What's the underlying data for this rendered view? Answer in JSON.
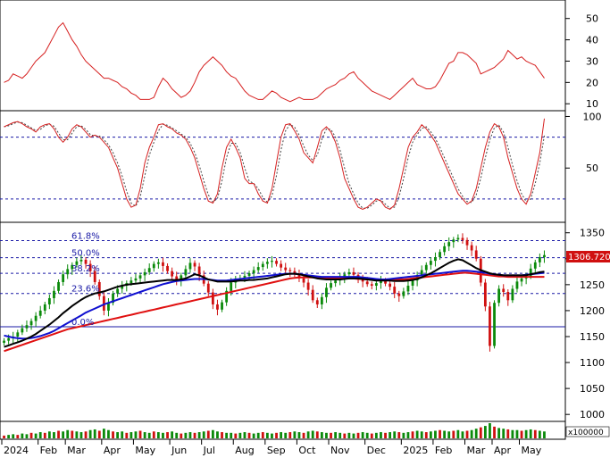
{
  "chart_data": [
    {
      "type": "line",
      "panel": "adx-indicator",
      "y_ticks": [
        10,
        20,
        30,
        40,
        50
      ],
      "ylim": [
        8,
        57
      ],
      "line_color": "#d62020",
      "x_count": 120,
      "series": [
        {
          "values": [
            20,
            21,
            24,
            23,
            22,
            24,
            27,
            30,
            32,
            34,
            38,
            42,
            46,
            48,
            44,
            40,
            37,
            33,
            30,
            28,
            26,
            24,
            22,
            22,
            21,
            20,
            18,
            17,
            15,
            14,
            12,
            12,
            12,
            13,
            18,
            22,
            20,
            17,
            15,
            13,
            14,
            16,
            20,
            25,
            28,
            30,
            32,
            30,
            28,
            25,
            23,
            22,
            19,
            16,
            14,
            13,
            12,
            12,
            14,
            16,
            15,
            13,
            12,
            11,
            12,
            13,
            12,
            12,
            12,
            13,
            15,
            17,
            18,
            19,
            21,
            22,
            24,
            25,
            22,
            20,
            18,
            16,
            15,
            14,
            13,
            12,
            14,
            16,
            18,
            20,
            22,
            19,
            18,
            17,
            17,
            18,
            21,
            25,
            29,
            30,
            34,
            34,
            33,
            31,
            29,
            24,
            25,
            26,
            27,
            29,
            31,
            35,
            33,
            31,
            32,
            30,
            29,
            28,
            25,
            22
          ]
        }
      ]
    },
    {
      "type": "line",
      "panel": "stochastic-oscillator",
      "y_ticks": [
        50,
        100
      ],
      "ylim": [
        0,
        103
      ],
      "reference_lines": [
        80,
        20
      ],
      "line_colors": [
        "#d62020",
        "#444444"
      ],
      "x_count": 120,
      "series": [
        {
          "values": [
            90,
            92,
            94,
            95,
            93,
            90,
            88,
            85,
            90,
            92,
            93,
            88,
            80,
            75,
            80,
            88,
            92,
            90,
            85,
            80,
            82,
            80,
            75,
            70,
            60,
            50,
            35,
            20,
            12,
            14,
            30,
            55,
            70,
            80,
            92,
            93,
            90,
            88,
            84,
            82,
            78,
            70,
            60,
            45,
            30,
            18,
            16,
            25,
            50,
            70,
            78,
            70,
            60,
            40,
            35,
            35,
            25,
            18,
            16,
            30,
            55,
            80,
            92,
            93,
            86,
            78,
            65,
            60,
            55,
            70,
            86,
            90,
            85,
            75,
            60,
            40,
            30,
            20,
            12,
            10,
            12,
            16,
            20,
            18,
            12,
            10,
            14,
            30,
            50,
            70,
            80,
            85,
            92,
            88,
            82,
            75,
            65,
            55,
            45,
            35,
            25,
            20,
            15,
            18,
            30,
            50,
            70,
            85,
            93,
            90,
            80,
            60,
            45,
            30,
            20,
            15,
            25,
            45,
            65,
            98
          ]
        }
      ]
    },
    {
      "type": "candlestick",
      "panel": "price",
      "y_ticks": [
        1000,
        1050,
        1100,
        1150,
        1200,
        1250,
        1300,
        1350
      ],
      "ylim": [
        990,
        1365
      ],
      "x_count": 120,
      "x_tick_labels": [
        "2024",
        "Feb",
        "Mar",
        "Apr",
        "May",
        "Jun",
        "Jul",
        "Aug",
        "Sep",
        "Oct",
        "Nov",
        "Dec",
        "2025",
        "Feb",
        "Mar",
        "Apr",
        "May"
      ],
      "x_tick_positions": [
        0,
        8,
        14,
        22,
        29,
        37,
        44,
        51,
        58,
        65,
        72,
        80,
        88,
        95,
        102,
        108,
        114
      ],
      "last_price_label": "1306.720",
      "fib_levels": [
        {
          "label": "61.8%",
          "value": 1335
        },
        {
          "label": "50.0%",
          "value": 1302
        },
        {
          "label": "38.2%",
          "value": 1272
        },
        {
          "label": "23.6%",
          "value": 1233
        },
        {
          "label": "0.0%",
          "value": 1169
        }
      ],
      "horizontal_line": 1169,
      "closes": [
        1142,
        1147,
        1150,
        1158,
        1166,
        1172,
        1180,
        1190,
        1200,
        1212,
        1224,
        1238,
        1255,
        1270,
        1280,
        1288,
        1295,
        1298,
        1290,
        1276,
        1255,
        1228,
        1200,
        1215,
        1233,
        1242,
        1248,
        1253,
        1258,
        1262,
        1268,
        1274,
        1282,
        1290,
        1293,
        1286,
        1276,
        1266,
        1258,
        1268,
        1280,
        1292,
        1285,
        1268,
        1252,
        1235,
        1212,
        1202,
        1216,
        1238,
        1254,
        1262,
        1262,
        1267,
        1272,
        1278,
        1284,
        1290,
        1294,
        1296,
        1290,
        1283,
        1278,
        1276,
        1270,
        1262,
        1254,
        1240,
        1220,
        1212,
        1226,
        1244,
        1253,
        1258,
        1264,
        1270,
        1274,
        1269,
        1262,
        1256,
        1251,
        1248,
        1253,
        1258,
        1252,
        1246,
        1233,
        1228,
        1237,
        1248,
        1258,
        1268,
        1278,
        1288,
        1296,
        1303,
        1313,
        1324,
        1332,
        1337,
        1340,
        1336,
        1326,
        1316,
        1300,
        1254,
        1208,
        1132,
        1215,
        1242,
        1236,
        1220,
        1242,
        1256,
        1262,
        1266,
        1281,
        1293,
        1303,
        1307
      ],
      "ma_black": [
        1130,
        1133,
        1136,
        1139,
        1142,
        1146,
        1150,
        1155,
        1161,
        1167,
        1173,
        1180,
        1187,
        1195,
        1202,
        1209,
        1215,
        1221,
        1226,
        1230,
        1233,
        1235,
        1237,
        1240,
        1243,
        1246,
        1248,
        1250,
        1251,
        1252,
        1253,
        1254,
        1255,
        1256,
        1257,
        1258,
        1259,
        1259,
        1259,
        1260,
        1262,
        1266,
        1270,
        1268,
        1264,
        1260,
        1258,
        1256,
        1256,
        1256,
        1256,
        1257,
        1258,
        1258,
        1259,
        1259,
        1260,
        1261,
        1262,
        1264,
        1266,
        1268,
        1270,
        1271,
        1271,
        1270,
        1268,
        1266,
        1264,
        1262,
        1261,
        1260,
        1260,
        1260,
        1260,
        1261,
        1262,
        1262,
        1262,
        1261,
        1260,
        1259,
        1258,
        1258,
        1258,
        1258,
        1257,
        1257,
        1257,
        1258,
        1259,
        1261,
        1264,
        1268,
        1272,
        1277,
        1282,
        1287,
        1292,
        1296,
        1299,
        1297,
        1292,
        1287,
        1282,
        1278,
        1275,
        1272,
        1270,
        1269,
        1268,
        1268,
        1268,
        1268,
        1268,
        1268,
        1270,
        1272,
        1274,
        1275
      ],
      "ma_blue": [
        1152,
        1150,
        1148,
        1147,
        1146,
        1146,
        1147,
        1149,
        1151,
        1154,
        1157,
        1161,
        1166,
        1171,
        1176,
        1181,
        1186,
        1191,
        1196,
        1200,
        1204,
        1208,
        1212,
        1215,
        1218,
        1221,
        1224,
        1227,
        1230,
        1233,
        1236,
        1239,
        1242,
        1245,
        1248,
        1251,
        1253,
        1255,
        1257,
        1258,
        1259,
        1260,
        1261,
        1261,
        1261,
        1260,
        1259,
        1258,
        1258,
        1258,
        1259,
        1260,
        1261,
        1262,
        1263,
        1264,
        1265,
        1266,
        1267,
        1268,
        1269,
        1270,
        1271,
        1271,
        1271,
        1270,
        1269,
        1268,
        1267,
        1266,
        1265,
        1265,
        1265,
        1265,
        1265,
        1265,
        1265,
        1265,
        1265,
        1264,
        1263,
        1262,
        1261,
        1260,
        1260,
        1261,
        1262,
        1263,
        1264,
        1265,
        1266,
        1267,
        1268,
        1269,
        1270,
        1271,
        1272,
        1273,
        1274,
        1275,
        1276,
        1277,
        1277,
        1276,
        1275,
        1274,
        1273,
        1271,
        1270,
        1269,
        1268,
        1268,
        1268,
        1268,
        1268,
        1269,
        1270,
        1271,
        1272,
        1273
      ],
      "ma_red": [
        1122,
        1125,
        1128,
        1131,
        1134,
        1137,
        1140,
        1143,
        1146,
        1149,
        1152,
        1155,
        1158,
        1161,
        1164,
        1166,
        1168,
        1170,
        1172,
        1174,
        1176,
        1178,
        1180,
        1182,
        1184,
        1186,
        1188,
        1190,
        1192,
        1194,
        1196,
        1198,
        1200,
        1202,
        1204,
        1206,
        1208,
        1210,
        1212,
        1214,
        1216,
        1218,
        1220,
        1222,
        1224,
        1226,
        1228,
        1230,
        1232,
        1234,
        1236,
        1238,
        1240,
        1242,
        1244,
        1246,
        1248,
        1250,
        1252,
        1254,
        1256,
        1258,
        1260,
        1262,
        1263,
        1264,
        1264,
        1264,
        1264,
        1263,
        1263,
        1263,
        1263,
        1263,
        1263,
        1263,
        1262,
        1262,
        1261,
        1261,
        1260,
        1260,
        1260,
        1260,
        1260,
        1260,
        1260,
        1260,
        1260,
        1261,
        1262,
        1263,
        1264,
        1265,
        1266,
        1267,
        1268,
        1269,
        1270,
        1271,
        1272,
        1273,
        1273,
        1272,
        1271,
        1270,
        1269,
        1268,
        1267,
        1266,
        1266,
        1265,
        1265,
        1265,
        1265,
        1265,
        1265,
        1265,
        1265,
        1265
      ]
    },
    {
      "type": "bar",
      "panel": "volume",
      "unit_label": "x100000",
      "x_count": 120,
      "values": [
        0.4,
        0.5,
        0.6,
        0.5,
        0.7,
        0.6,
        0.8,
        0.7,
        0.9,
        0.8,
        1.0,
        0.9,
        1.1,
        1.0,
        1.2,
        1.1,
        1.0,
        0.9,
        1.0,
        1.2,
        1.3,
        1.1,
        1.4,
        1.2,
        1.0,
        0.9,
        1.0,
        0.8,
        0.9,
        1.0,
        1.1,
        0.9,
        0.8,
        1.0,
        0.9,
        0.8,
        0.9,
        1.0,
        0.8,
        0.7,
        0.8,
        0.9,
        0.8,
        0.9,
        1.0,
        1.1,
        1.2,
        1.0,
        0.9,
        0.8,
        0.8,
        0.7,
        0.8,
        0.9,
        0.8,
        0.7,
        0.8,
        0.9,
        0.8,
        0.7,
        0.8,
        0.9,
        0.8,
        0.9,
        1.0,
        0.9,
        0.8,
        1.0,
        1.1,
        1.0,
        0.9,
        0.8,
        0.8,
        0.9,
        0.8,
        0.7,
        0.8,
        0.7,
        0.8,
        0.9,
        0.8,
        0.7,
        0.8,
        0.9,
        0.8,
        0.9,
        1.0,
        0.9,
        0.8,
        0.9,
        1.0,
        1.1,
        1.0,
        0.9,
        1.0,
        1.1,
        1.2,
        1.1,
        1.0,
        1.1,
        1.2,
        1.0,
        1.1,
        1.2,
        1.4,
        1.6,
        1.8,
        2.2,
        1.7,
        1.5,
        1.4,
        1.3,
        1.2,
        1.2,
        1.1,
        1.2,
        1.3,
        1.2,
        1.1,
        1.0
      ]
    }
  ]
}
